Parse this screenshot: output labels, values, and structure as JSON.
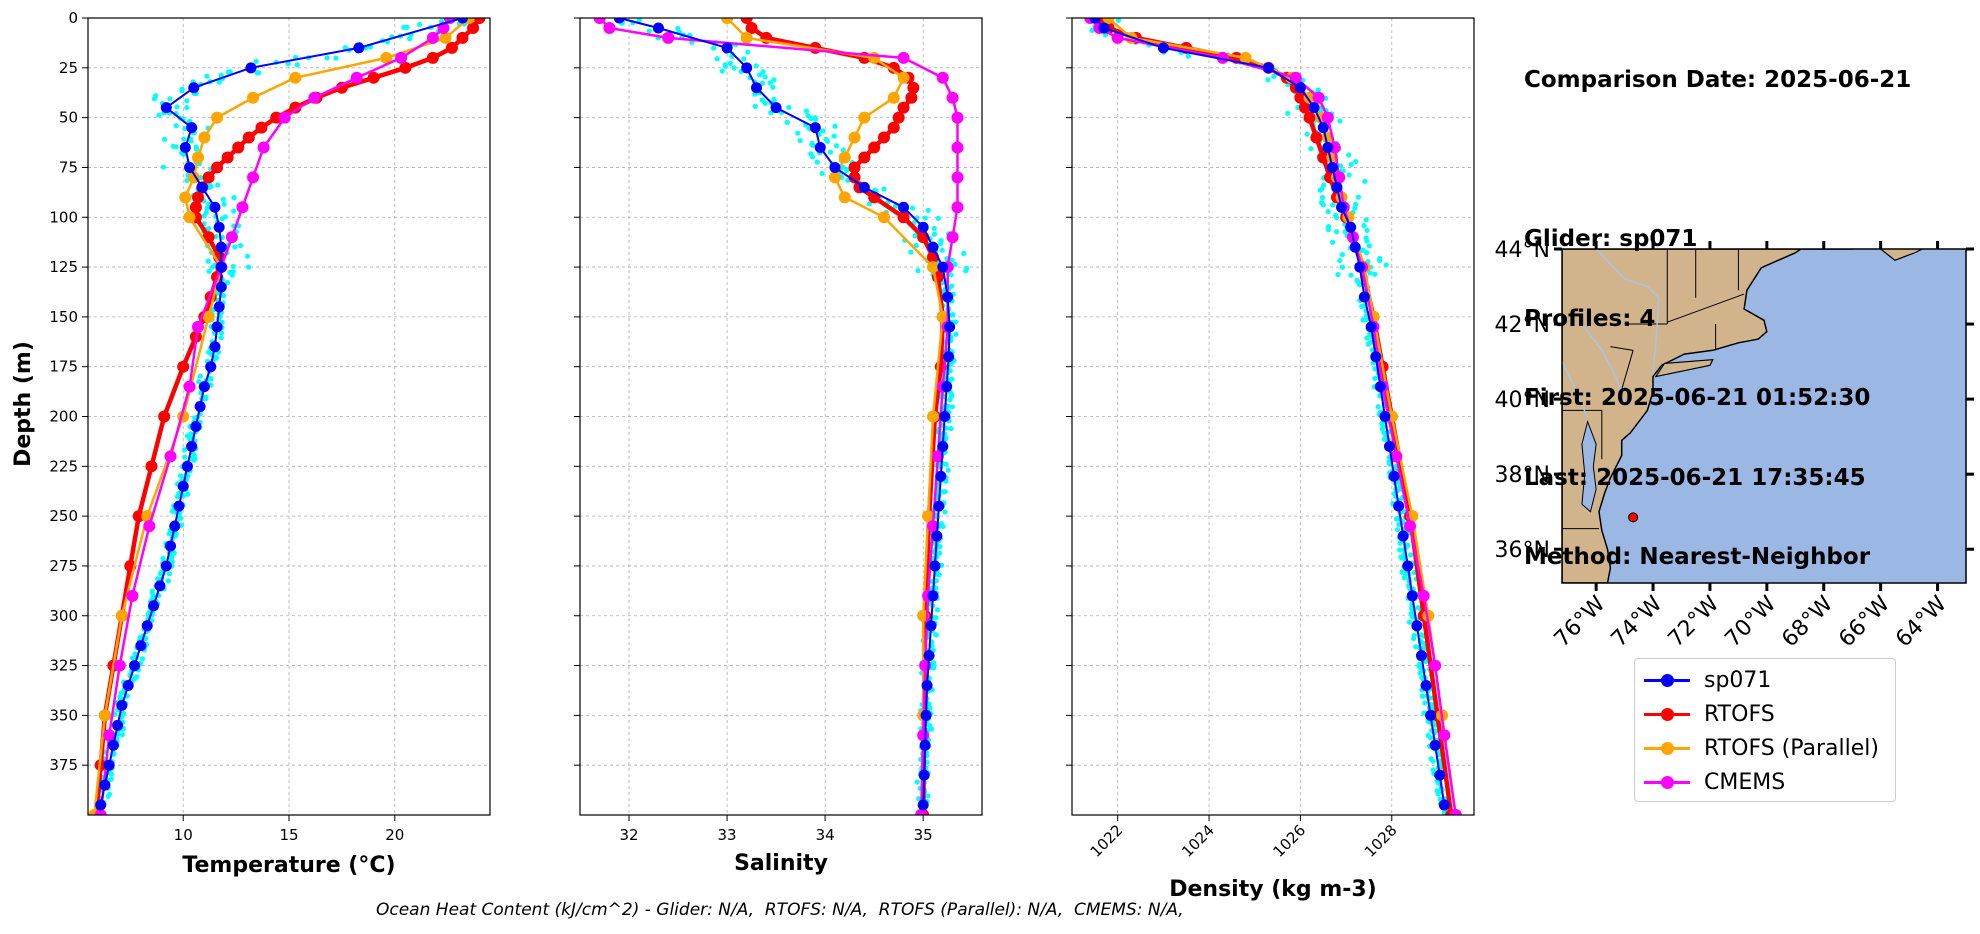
{
  "info": {
    "lines": [
      "Comparison Date: 2025-06-21",
      "",
      "Glider: sp071",
      "Profiles: 4",
      "First: 2025-06-21 01:52:30",
      "Last: 2025-06-21 17:35:45",
      "Method: Nearest-Neighbor"
    ]
  },
  "footer": "Ocean Heat Content (kJ/cm^2) - Glider: N/A,  RTOFS: N/A,  RTOFS (Parallel): N/A,  CMEMS: N/A,",
  "colors": {
    "glider": "#0000ff",
    "rtofs": "#ff0000",
    "parallel": "#ffa500",
    "cmems": "#ff00ff",
    "raw": "#00ffff",
    "land": "#d2b48c",
    "ocean": "#9ab8e3"
  },
  "legend": [
    {
      "label": "sp071",
      "color": "#0000ff"
    },
    {
      "label": "RTOFS",
      "color": "#ff0000"
    },
    {
      "label": "RTOFS (Parallel)",
      "color": "#ffa500"
    },
    {
      "label": "CMEMS",
      "color": "#ff00ff"
    }
  ],
  "chart_data": [
    {
      "type": "line",
      "xlabel": "Temperature (°C)",
      "ylabel": "Depth (m)",
      "xlim": [
        5.5,
        24.5
      ],
      "ylim": [
        400,
        0
      ],
      "xticks": [
        10,
        15,
        20
      ],
      "yticks": [
        0,
        25,
        50,
        75,
        100,
        125,
        150,
        175,
        200,
        225,
        250,
        275,
        300,
        325,
        350,
        375
      ],
      "grid": true,
      "series": [
        {
          "name": "sp071",
          "depth": [
            0,
            15,
            25,
            35,
            45,
            55,
            65,
            75,
            85,
            95,
            105,
            115,
            125,
            135,
            145,
            155,
            165,
            175,
            185,
            195,
            205,
            215,
            225,
            235,
            245,
            255,
            265,
            275,
            285,
            295,
            305,
            315,
            325,
            335,
            345,
            355,
            365,
            375,
            385,
            395
          ],
          "values": [
            23.2,
            18.3,
            13.2,
            10.5,
            9.2,
            10.4,
            10.1,
            10.3,
            10.9,
            11.5,
            11.7,
            11.8,
            11.8,
            11.8,
            11.7,
            11.6,
            11.5,
            11.3,
            11.0,
            10.8,
            10.6,
            10.4,
            10.2,
            10.0,
            9.8,
            9.6,
            9.4,
            9.2,
            8.9,
            8.6,
            8.3,
            8.0,
            7.7,
            7.4,
            7.1,
            6.9,
            6.7,
            6.5,
            6.3,
            6.1
          ]
        },
        {
          "name": "RTOFS",
          "depth": [
            0,
            5,
            10,
            15,
            20,
            25,
            30,
            35,
            40,
            45,
            50,
            55,
            60,
            65,
            70,
            75,
            80,
            85,
            90,
            95,
            100,
            110,
            120,
            130,
            140,
            150,
            160,
            175,
            200,
            225,
            250,
            275,
            300,
            325,
            350,
            375,
            400
          ],
          "values": [
            24.0,
            23.7,
            23.2,
            22.7,
            21.8,
            20.5,
            19.0,
            17.5,
            16.3,
            15.3,
            14.4,
            13.7,
            13.1,
            12.6,
            12.1,
            11.6,
            11.2,
            10.9,
            10.7,
            10.6,
            10.6,
            11.2,
            11.7,
            11.6,
            11.3,
            11.0,
            10.6,
            10.0,
            9.1,
            8.5,
            7.9,
            7.5,
            7.1,
            6.7,
            6.3,
            6.1,
            5.9
          ]
        },
        {
          "name": "RTOFS (Parallel)",
          "depth": [
            0,
            10,
            20,
            30,
            40,
            50,
            60,
            70,
            80,
            90,
            100,
            125,
            150,
            200,
            250,
            300,
            350,
            400
          ],
          "values": [
            23.5,
            22.4,
            19.6,
            15.3,
            13.3,
            11.6,
            11.0,
            10.7,
            10.5,
            10.1,
            10.3,
            11.8,
            11.2,
            10.0,
            8.3,
            7.1,
            6.3,
            5.8
          ]
        },
        {
          "name": "CMEMS",
          "depth": [
            0,
            5,
            10,
            20,
            30,
            40,
            50,
            65,
            80,
            95,
            110,
            125,
            155,
            185,
            220,
            255,
            290,
            325,
            360,
            400
          ],
          "values": [
            22.6,
            22.3,
            21.8,
            20.3,
            18.2,
            16.2,
            14.8,
            13.8,
            13.3,
            12.8,
            12.3,
            11.8,
            10.7,
            10.3,
            9.4,
            8.4,
            7.6,
            7.0,
            6.5,
            6.1
          ]
        }
      ]
    },
    {
      "type": "line",
      "xlabel": "Salinity",
      "xlim": [
        31.5,
        35.6
      ],
      "ylim": [
        400,
        0
      ],
      "xticks": [
        32,
        33,
        34,
        35
      ],
      "grid": true,
      "series": [
        {
          "name": "sp071",
          "depth": [
            0,
            5,
            15,
            25,
            35,
            45,
            55,
            65,
            75,
            85,
            95,
            105,
            115,
            125,
            140,
            155,
            170,
            185,
            200,
            215,
            230,
            245,
            260,
            275,
            290,
            305,
            320,
            335,
            350,
            365,
            380,
            395
          ],
          "values": [
            31.9,
            32.3,
            33.0,
            33.2,
            33.3,
            33.5,
            33.9,
            33.95,
            34.1,
            34.4,
            34.8,
            35.0,
            35.1,
            35.2,
            35.25,
            35.27,
            35.26,
            35.24,
            35.22,
            35.2,
            35.18,
            35.16,
            35.14,
            35.12,
            35.1,
            35.08,
            35.06,
            35.04,
            35.03,
            35.02,
            35.01,
            35.0
          ]
        },
        {
          "name": "RTOFS",
          "depth": [
            0,
            5,
            10,
            15,
            20,
            25,
            30,
            35,
            40,
            45,
            50,
            55,
            60,
            65,
            70,
            75,
            80,
            85,
            90,
            100,
            110,
            120,
            130,
            150,
            175,
            200,
            250,
            300,
            350,
            400
          ],
          "values": [
            33.2,
            33.25,
            33.4,
            33.9,
            34.4,
            34.7,
            34.85,
            34.9,
            34.88,
            34.8,
            34.75,
            34.7,
            34.6,
            34.5,
            34.4,
            34.3,
            34.3,
            34.35,
            34.5,
            34.8,
            35.0,
            35.1,
            35.15,
            35.2,
            35.18,
            35.12,
            35.06,
            35.02,
            35.01,
            35.0
          ]
        },
        {
          "name": "RTOFS (Parallel)",
          "depth": [
            0,
            10,
            20,
            30,
            40,
            50,
            60,
            70,
            80,
            90,
            100,
            125,
            150,
            200,
            250,
            300,
            350,
            400
          ],
          "values": [
            33.0,
            33.2,
            34.5,
            34.8,
            34.7,
            34.4,
            34.3,
            34.2,
            34.1,
            34.2,
            34.6,
            35.1,
            35.2,
            35.1,
            35.05,
            35.0,
            35.0,
            34.98
          ]
        },
        {
          "name": "CMEMS",
          "depth": [
            0,
            5,
            10,
            20,
            30,
            40,
            50,
            65,
            80,
            95,
            110,
            125,
            155,
            185,
            220,
            255,
            290,
            325,
            360,
            400
          ],
          "values": [
            31.7,
            31.8,
            32.4,
            34.8,
            35.2,
            35.3,
            35.35,
            35.35,
            35.35,
            35.35,
            35.3,
            35.25,
            35.25,
            35.2,
            35.15,
            35.1,
            35.05,
            35.02,
            35.0,
            34.98
          ]
        }
      ]
    },
    {
      "type": "line",
      "xlabel": "Density (kg m-3)",
      "xlim": [
        1021.0,
        1029.8
      ],
      "ylim": [
        400,
        0
      ],
      "xticks": [
        1022,
        1024,
        1026,
        1028
      ],
      "grid": true,
      "series": [
        {
          "name": "sp071",
          "depth": [
            0,
            5,
            15,
            25,
            35,
            45,
            55,
            65,
            75,
            85,
            95,
            105,
            115,
            125,
            140,
            155,
            170,
            185,
            200,
            215,
            230,
            245,
            260,
            275,
            290,
            305,
            320,
            335,
            350,
            365,
            380,
            395
          ],
          "values": [
            1021.5,
            1021.7,
            1023.0,
            1025.3,
            1026.0,
            1026.3,
            1026.5,
            1026.6,
            1026.7,
            1026.8,
            1026.9,
            1027.1,
            1027.2,
            1027.3,
            1027.4,
            1027.55,
            1027.65,
            1027.75,
            1027.85,
            1027.95,
            1028.05,
            1028.15,
            1028.25,
            1028.35,
            1028.45,
            1028.55,
            1028.65,
            1028.75,
            1028.85,
            1028.95,
            1029.05,
            1029.15
          ]
        },
        {
          "name": "RTOFS",
          "depth": [
            0,
            5,
            10,
            15,
            20,
            25,
            30,
            35,
            40,
            45,
            50,
            60,
            70,
            80,
            90,
            100,
            125,
            150,
            175,
            200,
            250,
            300,
            350,
            400
          ],
          "values": [
            1021.6,
            1021.8,
            1022.4,
            1023.5,
            1024.6,
            1025.3,
            1025.7,
            1025.9,
            1026.0,
            1026.1,
            1026.2,
            1026.35,
            1026.5,
            1026.65,
            1026.8,
            1027.0,
            1027.35,
            1027.6,
            1027.8,
            1028.0,
            1028.4,
            1028.7,
            1029.0,
            1029.3
          ]
        },
        {
          "name": "RTOFS (Parallel)",
          "depth": [
            0,
            10,
            20,
            30,
            40,
            50,
            60,
            70,
            80,
            90,
            100,
            125,
            150,
            200,
            250,
            300,
            350,
            400
          ],
          "values": [
            1021.8,
            1022.3,
            1024.8,
            1025.8,
            1026.2,
            1026.45,
            1026.6,
            1026.7,
            1026.8,
            1026.9,
            1027.05,
            1027.4,
            1027.6,
            1028.0,
            1028.45,
            1028.8,
            1029.1,
            1029.4
          ]
        },
        {
          "name": "CMEMS",
          "depth": [
            0,
            5,
            10,
            20,
            30,
            40,
            50,
            65,
            80,
            95,
            110,
            125,
            155,
            185,
            220,
            255,
            290,
            325,
            360,
            400
          ],
          "values": [
            1021.4,
            1021.6,
            1022.0,
            1024.3,
            1025.9,
            1026.4,
            1026.6,
            1026.75,
            1026.85,
            1026.95,
            1027.15,
            1027.35,
            1027.6,
            1027.8,
            1028.1,
            1028.4,
            1028.7,
            1028.95,
            1029.15,
            1029.4
          ]
        }
      ]
    }
  ],
  "map": {
    "lat_ticks": [
      "44°N",
      "42°N",
      "40°N",
      "38°N",
      "36°N"
    ],
    "lon_ticks": [
      "76°W",
      "74°W",
      "72°W",
      "70°W",
      "68°W",
      "66°W",
      "64°W"
    ],
    "lat_values": [
      44,
      42,
      40,
      38,
      36
    ],
    "lon_values": [
      -76,
      -74,
      -72,
      -70,
      -68,
      -66,
      -64
    ],
    "extent": {
      "lon_min": -77.2,
      "lon_max": -63.0,
      "lat_min": 35.1,
      "lat_max": 44.0
    },
    "glider_position": {
      "lat": 36.85,
      "lon": -74.7
    }
  }
}
